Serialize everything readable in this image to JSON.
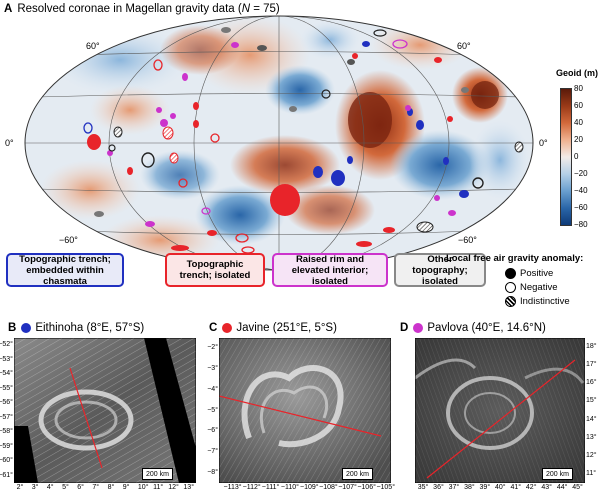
{
  "figure": {
    "panel_a_letter": "A",
    "title_text": "Resolved coronae in Magellan gravity data (",
    "title_n": "N",
    "title_count": " = 75)",
    "lat_labels": {
      "n60_left": "60°",
      "n60_right": "60°",
      "eq_left": "0°",
      "eq_right": "0°",
      "s60_left": "−60°",
      "s60_right": "−60°"
    },
    "colorbar": {
      "title": "Geoid (m)",
      "ticks": [
        "80",
        "60",
        "40",
        "20",
        "0",
        "−20",
        "−40",
        "−60",
        "−80"
      ],
      "colors": [
        "#5a1a0a",
        "#9a3a18",
        "#d2693b",
        "#f0b18f",
        "#f3ece8",
        "#b4cfe6",
        "#6a9fcf",
        "#2a66a8",
        "#0e3a78"
      ]
    },
    "categories": [
      {
        "label": "Topographic trench; embedded within chasmata",
        "color": "#2030c0"
      },
      {
        "label": "Topographic trench; isolated",
        "color": "#e8242a"
      },
      {
        "label": "Raised rim and elevated interior; isolated",
        "color": "#cc33cc"
      },
      {
        "label": "Other topography; isolated",
        "color": "#777777"
      }
    ],
    "legend": {
      "title": "Local free air gravity anomaly:",
      "positive": "Positive",
      "negative": "Negative",
      "indistinctive": "Indistinctive"
    },
    "panels": [
      {
        "letter": "B",
        "name": "Eithinoha",
        "coords": "(8°E, 57°S)",
        "dot_color": "#2030c0",
        "y_ticks": [
          "−52°",
          "−53°",
          "−54°",
          "−55°",
          "−56°",
          "−57°",
          "−58°",
          "−59°",
          "−60°",
          "−61°"
        ],
        "x_ticks": [
          "2°",
          "3°",
          "4°",
          "5°",
          "6°",
          "7°",
          "8°",
          "9°",
          "10°",
          "11°",
          "12°",
          "13°"
        ],
        "scale": "200 km"
      },
      {
        "letter": "C",
        "name": "Javine",
        "coords": "(251°E, 5°S)",
        "dot_color": "#e8242a",
        "y_ticks": [
          "−2°",
          "−3°",
          "−4°",
          "−5°",
          "−6°",
          "−7°",
          "−8°"
        ],
        "x_ticks": [
          "−113°",
          "−112°",
          "−111°",
          "−110°",
          "−109°",
          "−108°",
          "−107°",
          "−106°",
          "−105°"
        ],
        "scale": "200 km"
      },
      {
        "letter": "D",
        "name": "Pavlova",
        "coords": "(40°E, 14.6°N)",
        "dot_color": "#cc33cc",
        "y_ticks": [
          "18°",
          "17°",
          "16°",
          "15°",
          "14°",
          "13°",
          "12°",
          "11°"
        ],
        "x_ticks": [
          "35°",
          "36°",
          "37°",
          "38°",
          "39°",
          "40°",
          "41°",
          "42°",
          "43°",
          "44°",
          "45°"
        ],
        "scale": "200 km"
      }
    ]
  }
}
